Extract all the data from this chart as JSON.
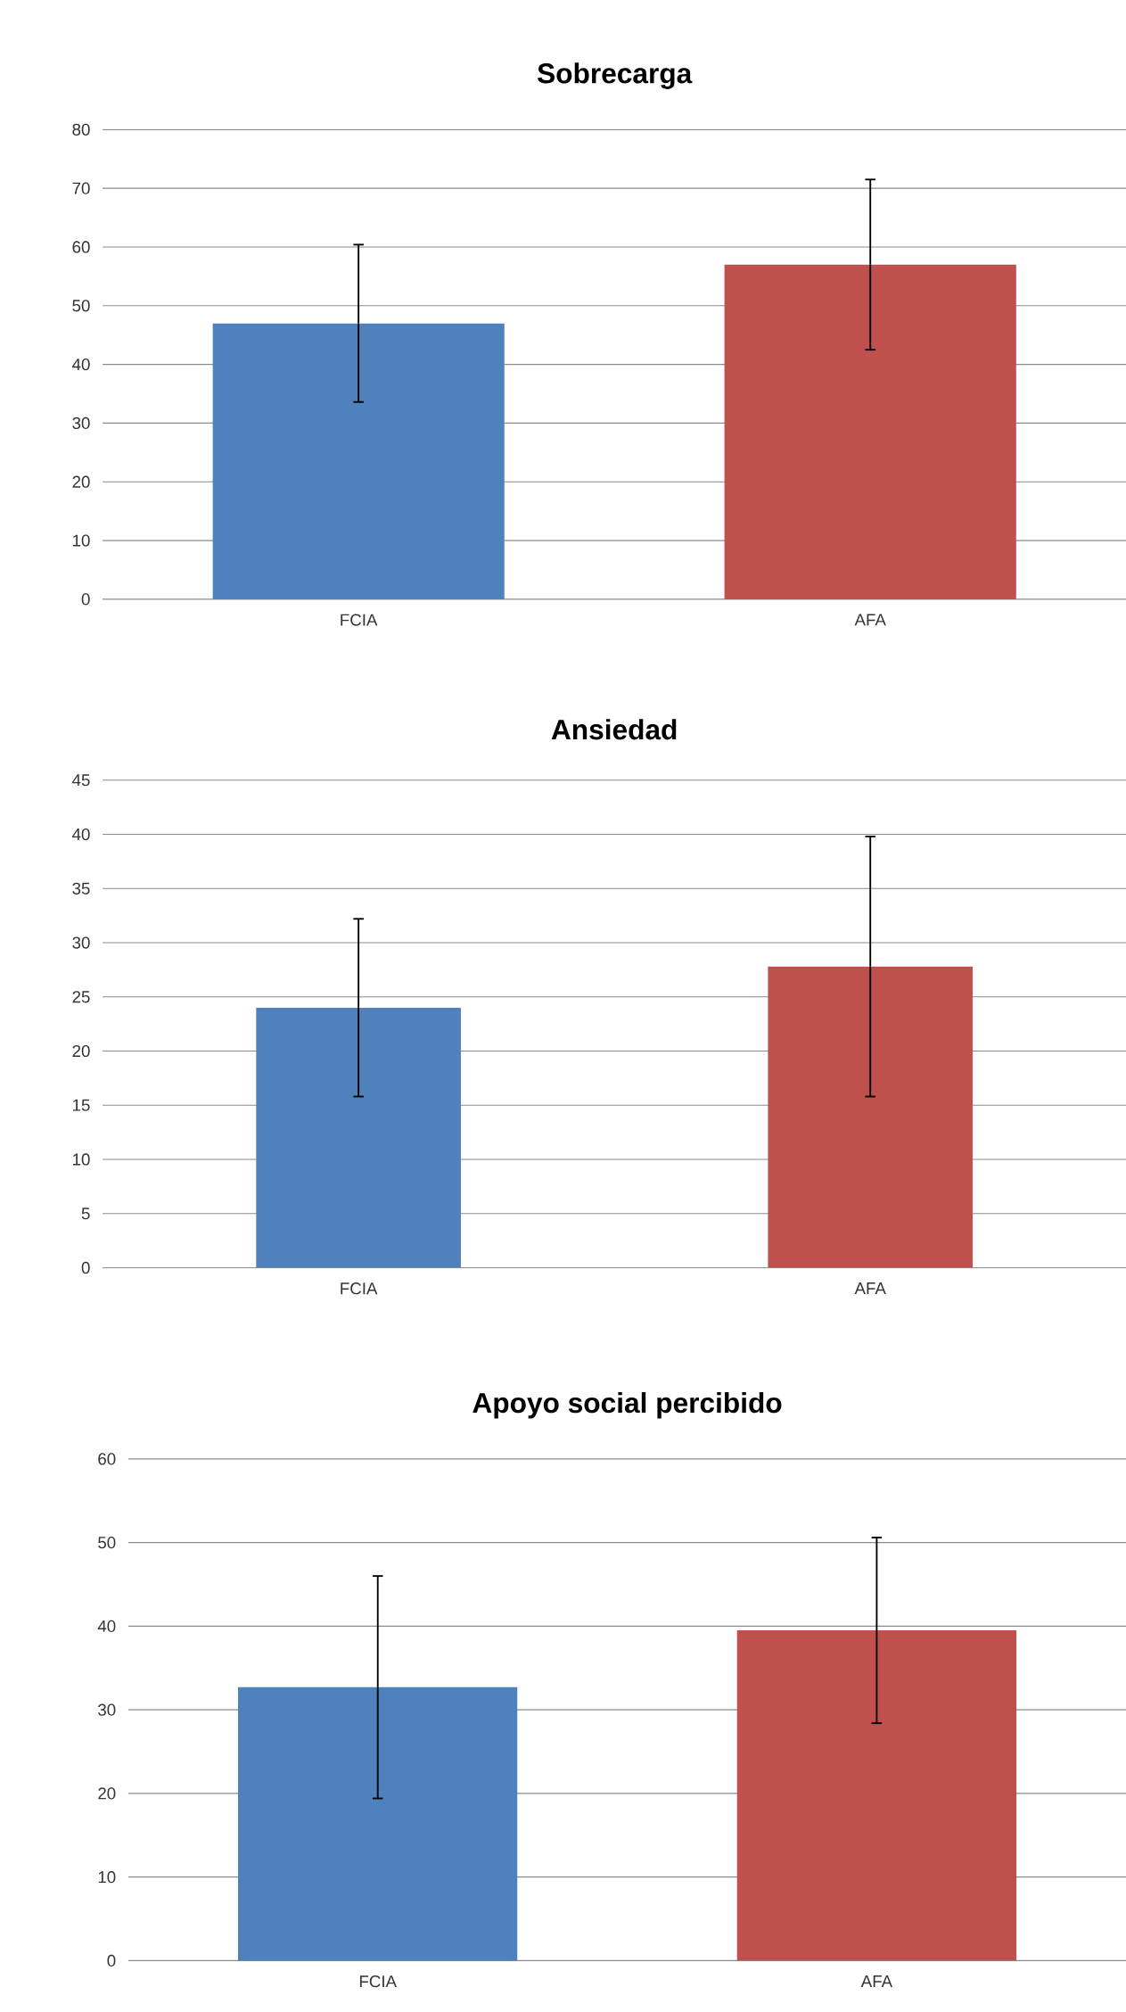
{
  "chart_data": [
    {
      "type": "bar",
      "title": "Sobrecarga",
      "categories": [
        "FCIA",
        "AFA"
      ],
      "values": [
        47,
        57
      ],
      "errors": [
        13.4,
        14.5
      ],
      "colors": [
        "#4f81bd",
        "#c0504d"
      ],
      "ylim": [
        0,
        80
      ],
      "yticks": [
        0,
        10,
        20,
        30,
        40,
        50,
        60,
        70,
        80
      ],
      "grid": "y"
    },
    {
      "type": "bar",
      "title": "Ansiedad",
      "categories": [
        "FCIA",
        "AFA"
      ],
      "values": [
        24,
        27.8
      ],
      "errors": [
        8.2,
        12
      ],
      "colors": [
        "#4f81bd",
        "#c0504d"
      ],
      "ylim": [
        0,
        45
      ],
      "yticks": [
        0,
        5,
        10,
        15,
        20,
        25,
        30,
        35,
        40,
        45
      ],
      "grid": "y"
    },
    {
      "type": "bar",
      "title": "Apoyo social percibido",
      "categories": [
        "FCIA",
        "AFA"
      ],
      "values": [
        32.7,
        39.5
      ],
      "errors": [
        13.3,
        11.1
      ],
      "colors": [
        "#4f81bd",
        "#c0504d"
      ],
      "ylim": [
        0,
        60
      ],
      "yticks": [
        0,
        10,
        20,
        30,
        40,
        50,
        60
      ],
      "grid": "y"
    }
  ]
}
